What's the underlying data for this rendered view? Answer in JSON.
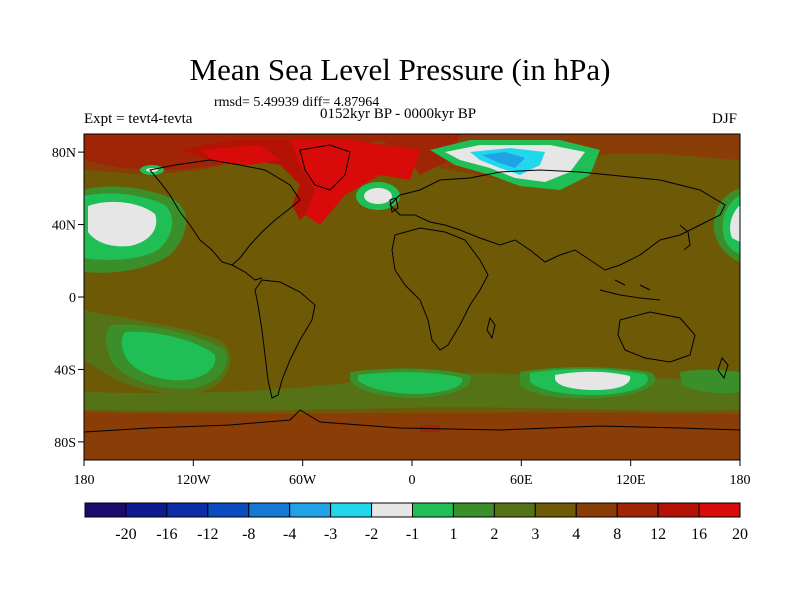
{
  "title": "Mean Sea Level Pressure (in hPa)",
  "stats": "rmsd= 5.49939 diff= 4.87964",
  "period": "0152kyr BP - 0000kyr BP",
  "experiment": "Expt = tevt4-tevta",
  "season": "DJF",
  "axes": {
    "lat_ticks": [
      {
        "label": "80N",
        "value": 80
      },
      {
        "label": "40N",
        "value": 40
      },
      {
        "label": "0",
        "value": 0
      },
      {
        "label": "40S",
        "value": -40
      },
      {
        "label": "80S",
        "value": -80
      }
    ],
    "lon_ticks": [
      {
        "label": "180",
        "value": -180
      },
      {
        "label": "120W",
        "value": -120
      },
      {
        "label": "60W",
        "value": -60
      },
      {
        "label": "0",
        "value": 0
      },
      {
        "label": "60E",
        "value": 60
      },
      {
        "label": "120E",
        "value": 120
      },
      {
        "label": "180",
        "value": 180
      }
    ]
  },
  "colorbar": {
    "colors": [
      "#1a0a6e",
      "#0d1b8f",
      "#0b2ea8",
      "#0a4cbf",
      "#1479d2",
      "#1fa2e6",
      "#22d6ec",
      "#e6e6e6",
      "#1fbf55",
      "#3a8f2a",
      "#557216",
      "#6e5a06",
      "#8a3d06",
      "#a02506",
      "#b51206",
      "#d80a0a"
    ],
    "labels": [
      "-20",
      "-16",
      "-12",
      "-8",
      "-4",
      "-3",
      "-2",
      "-1",
      "1",
      "2",
      "3",
      "4",
      "8",
      "12",
      "16",
      "20"
    ]
  }
}
